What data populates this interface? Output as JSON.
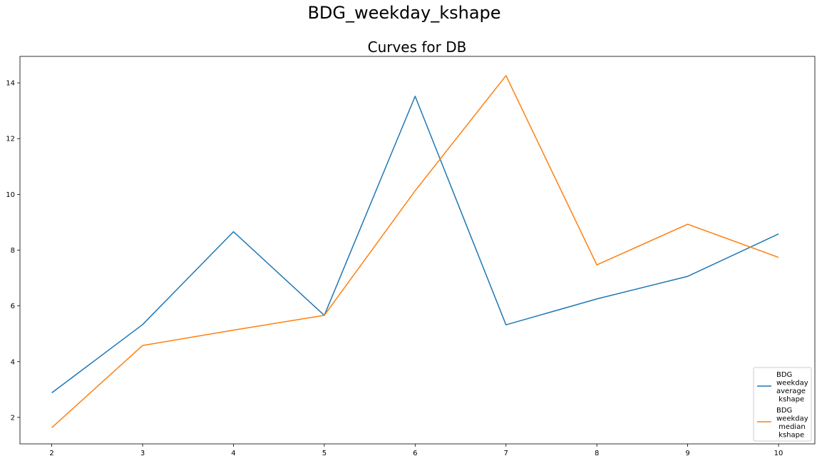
{
  "figure": {
    "suptitle": "BDG_weekday_kshape"
  },
  "chart_data": {
    "type": "line",
    "title": "Curves for DB",
    "xlabel": "",
    "ylabel": "",
    "x": [
      2,
      3,
      4,
      5,
      6,
      7,
      8,
      9,
      10
    ],
    "xticks": [
      "2",
      "3",
      "4",
      "5",
      "6",
      "7",
      "8",
      "9",
      "10"
    ],
    "yticks": [
      "2",
      "4",
      "6",
      "8",
      "10",
      "12",
      "14"
    ],
    "xlim": [
      1.65,
      10.4
    ],
    "ylim": [
      1.05,
      14.95
    ],
    "grid": false,
    "legend_position": "lower-right",
    "series": [
      {
        "name": "BDG weekday average kshape",
        "legend_lines": [
          "BDG",
          "weekday",
          "average",
          " kshape"
        ],
        "color": "#1f77b4",
        "values": [
          2.88,
          5.33,
          8.66,
          5.66,
          13.52,
          5.32,
          6.25,
          7.06,
          8.58
        ]
      },
      {
        "name": "BDG weekday median kshape",
        "legend_lines": [
          "BDG",
          "weekday",
          " median",
          " kshape"
        ],
        "color": "#ff7f0e",
        "values": [
          1.63,
          4.58,
          5.13,
          5.66,
          10.13,
          14.26,
          7.47,
          8.93,
          7.74
        ]
      }
    ]
  }
}
